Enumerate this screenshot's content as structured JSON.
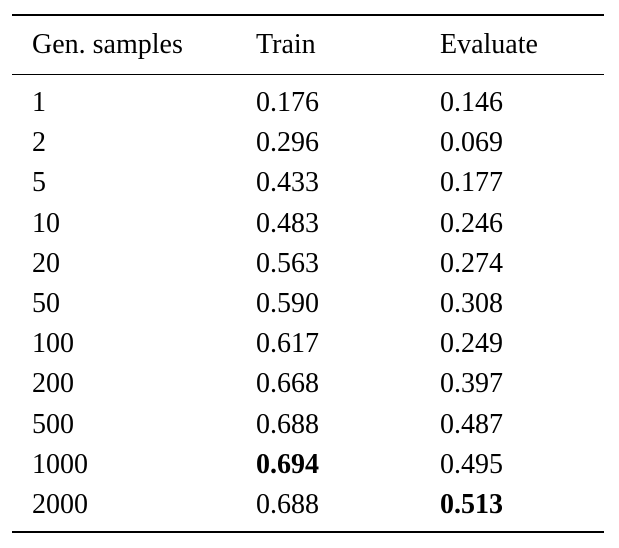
{
  "table": {
    "headers": [
      "Gen. samples",
      "Train",
      "Evaluate"
    ],
    "rows": [
      {
        "samples": "1",
        "train": "0.176",
        "evaluate": "0.146"
      },
      {
        "samples": "2",
        "train": "0.296",
        "evaluate": "0.069"
      },
      {
        "samples": "5",
        "train": "0.433",
        "evaluate": "0.177"
      },
      {
        "samples": "10",
        "train": "0.483",
        "evaluate": "0.246"
      },
      {
        "samples": "20",
        "train": "0.563",
        "evaluate": "0.274"
      },
      {
        "samples": "50",
        "train": "0.590",
        "evaluate": "0.308"
      },
      {
        "samples": "100",
        "train": "0.617",
        "evaluate": "0.249"
      },
      {
        "samples": "200",
        "train": "0.668",
        "evaluate": "0.397"
      },
      {
        "samples": "500",
        "train": "0.688",
        "evaluate": "0.487"
      },
      {
        "samples": "1000",
        "train": "0.694",
        "evaluate": "0.495"
      },
      {
        "samples": "2000",
        "train": "0.688",
        "evaluate": "0.513"
      }
    ],
    "best_train_row": "1000",
    "best_evaluate_row": "2000"
  }
}
